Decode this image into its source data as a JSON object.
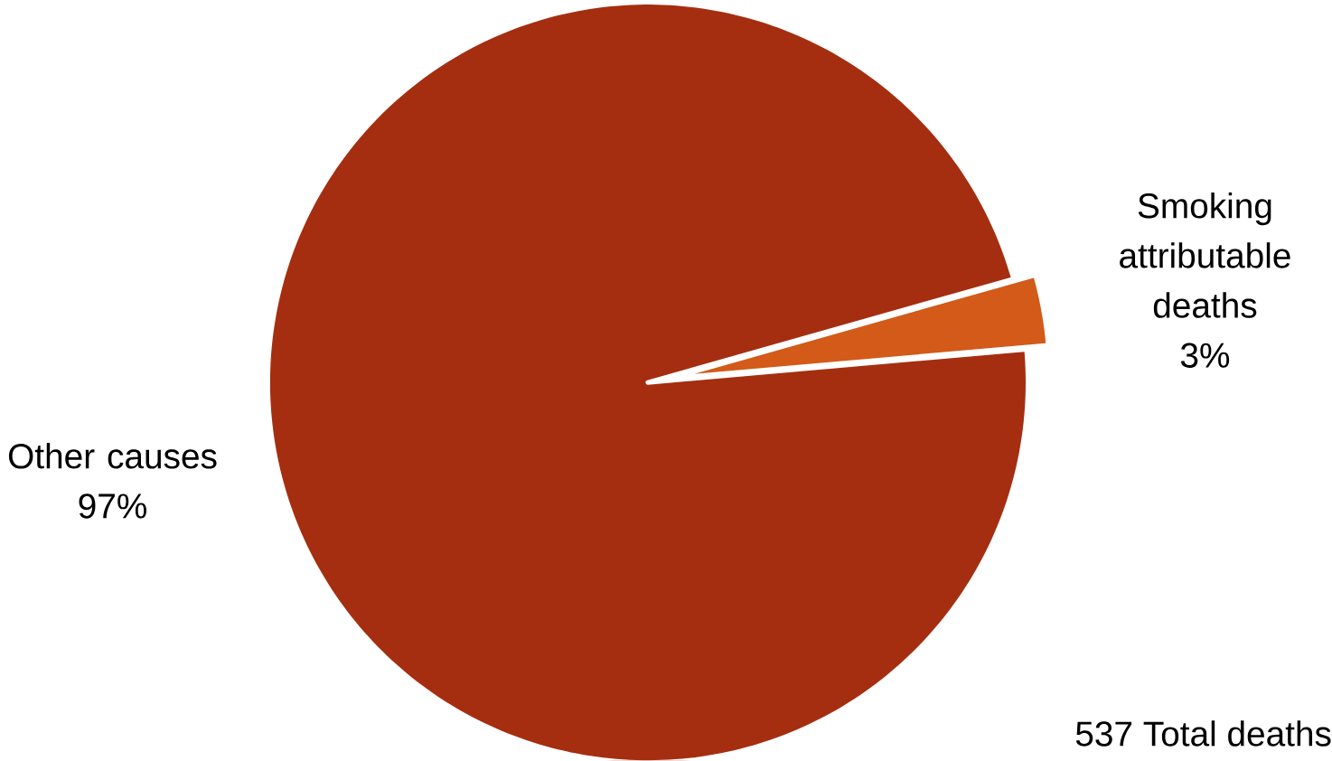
{
  "chart_data": {
    "type": "pie",
    "categories": [
      "Smoking attributable deaths",
      "Other causes"
    ],
    "values": [
      3,
      97
    ],
    "colors": [
      "#d35a19",
      "#a52e10"
    ],
    "value_labels": [
      "3%",
      "97%"
    ],
    "annotations": [
      "537 Total deaths"
    ]
  }
}
